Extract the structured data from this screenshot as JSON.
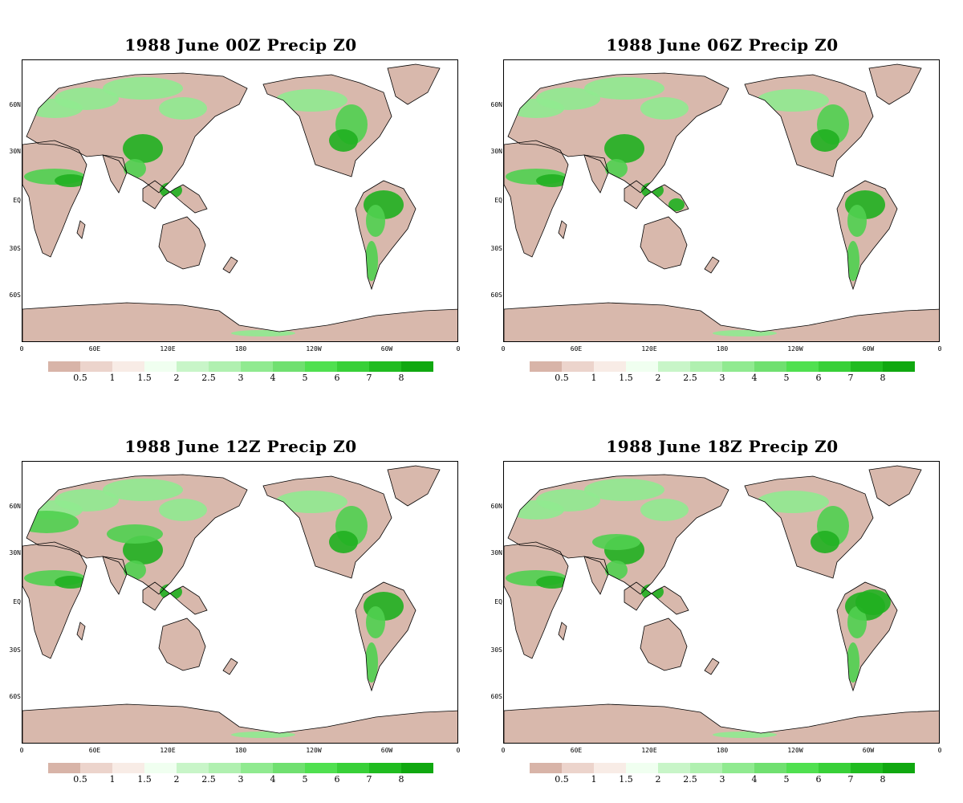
{
  "panels": [
    {
      "title": "1988 June  00Z Precip Z0"
    },
    {
      "title": "1988  June 06Z Precip Z0"
    },
    {
      "title": "1988  June 12Z Precip Z0"
    },
    {
      "title": "1988  June 18Z Precip Z0"
    }
  ],
  "lat_labels": [
    "60N",
    "30N",
    "EQ",
    "30S",
    "60S"
  ],
  "lon_labels": [
    "0",
    "60E",
    "120E",
    "180",
    "120W",
    "60W",
    "0"
  ],
  "colorbar": {
    "labels": [
      "0.5",
      "1",
      "1.5",
      "2",
      "2.5",
      "3",
      "4",
      "5",
      "6",
      "7",
      "8"
    ],
    "colors": [
      "#d8b4a8",
      "#ecd4cc",
      "#f8ece6",
      "#f0fff0",
      "#c8f5c8",
      "#b0f0b0",
      "#90ea90",
      "#70e070",
      "#50e050",
      "#38d038",
      "#20bc20",
      "#10a810"
    ]
  },
  "land_color": "#d8b8ac",
  "wet_colors": [
    "#90ea90",
    "#50d050",
    "#20b020"
  ]
}
